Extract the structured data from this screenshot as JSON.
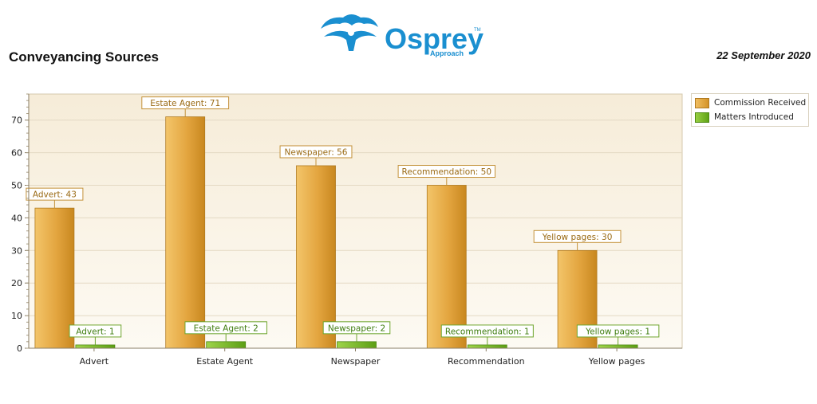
{
  "header": {
    "title": "Conveyancing Sources",
    "date": "22 September 2020",
    "logo": {
      "text": "Osprey",
      "subtext": "Approach",
      "tm": "TM",
      "color": "#1a8fd0"
    }
  },
  "colors": {
    "commission": "#e0a43a",
    "matters": "#7bbb2a",
    "plot_background": "#f9f2e4",
    "gridline": "#e6dcc8"
  },
  "chart_data": {
    "type": "bar",
    "title": "",
    "xlabel": "",
    "ylabel": "",
    "categories": [
      "Advert",
      "Estate Agent",
      "Newspaper",
      "Recommendation",
      "Yellow pages"
    ],
    "series": [
      {
        "name": "Commission Received",
        "values": [
          43,
          71,
          56,
          50,
          30
        ]
      },
      {
        "name": "Matters Introduced",
        "values": [
          1,
          2,
          2,
          1,
          1
        ]
      }
    ],
    "data_labels": [
      [
        "Advert: 43",
        "Estate Agent: 71",
        "Newspaper: 56",
        "Recommendation: 50",
        "Yellow pages: 30"
      ],
      [
        "Advert: 1",
        "Estate Agent: 2",
        "Newspaper: 2",
        "Recommendation: 1",
        "Yellow pages: 1"
      ]
    ],
    "ylim": [
      0,
      78
    ],
    "yticks": [
      0,
      10,
      20,
      30,
      40,
      50,
      60,
      70
    ],
    "grid": true,
    "legend": "top-right"
  }
}
